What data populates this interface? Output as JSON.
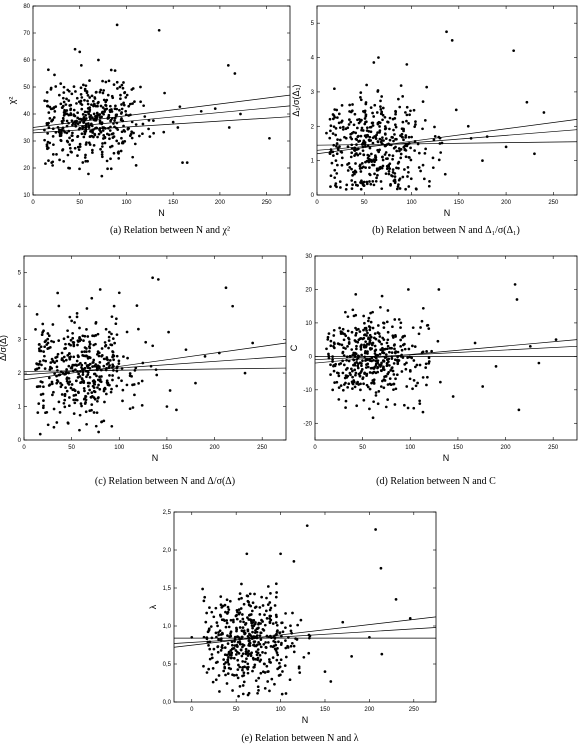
{
  "chart_data": [
    {
      "id": "a",
      "type": "scatter",
      "caption": "(a)  Relation between N and χ²",
      "xlabel": "N",
      "ylabel": "χ²",
      "xlim": [
        0,
        275
      ],
      "ylim": [
        10,
        80
      ],
      "xticks": [
        0,
        50,
        100,
        150,
        200,
        250
      ],
      "xtick_labels": [
        "0",
        "50",
        "100",
        "150",
        "200",
        "250"
      ],
      "yticks": [
        10,
        20,
        30,
        40,
        50,
        60,
        70,
        80
      ],
      "ytick_labels": [
        "10",
        "20",
        "30",
        "40",
        "50",
        "60",
        "70",
        "80"
      ],
      "cluster": {
        "n": 450,
        "x_center": 62,
        "x_spread": 28,
        "y_center": 37,
        "y_spread": 7
      },
      "points": [
        [
          90,
          73
        ],
        [
          135,
          71
        ],
        [
          50,
          63
        ],
        [
          45,
          64
        ],
        [
          70,
          60
        ],
        [
          209,
          58
        ],
        [
          216,
          55
        ],
        [
          93,
          50
        ],
        [
          115,
          50
        ],
        [
          150,
          37
        ],
        [
          155,
          35
        ],
        [
          160,
          22
        ],
        [
          165,
          22
        ],
        [
          180,
          41
        ],
        [
          195,
          42
        ],
        [
          210,
          35
        ],
        [
          222,
          40
        ],
        [
          253,
          31
        ],
        [
          30,
          32
        ],
        [
          38,
          20
        ],
        [
          20,
          22
        ],
        [
          15,
          28
        ],
        [
          17,
          35
        ]
      ],
      "fit_lines": [
        [
          [
            0,
            35
          ],
          [
            275,
            47
          ]
        ],
        [
          [
            0,
            34
          ],
          [
            275,
            43
          ]
        ],
        [
          [
            0,
            33
          ],
          [
            275,
            39
          ]
        ]
      ]
    },
    {
      "id": "b",
      "type": "scatter",
      "caption": "(b)  Relation between N and Δ₁/σ(Δ₁)",
      "xlabel": "N",
      "ylabel": "Δ₁/σ(Δ₁)",
      "xlim": [
        0,
        275
      ],
      "ylim": [
        0,
        5.5
      ],
      "xticks": [
        0,
        50,
        100,
        150,
        200,
        250
      ],
      "xtick_labels": [
        "0",
        "50",
        "100",
        "150",
        "200",
        "250"
      ],
      "yticks": [
        0,
        1,
        2,
        3,
        4,
        5
      ],
      "ytick_labels": [
        "0",
        "1",
        "2",
        "3",
        "4",
        "5"
      ],
      "cluster": {
        "n": 450,
        "x_center": 62,
        "x_spread": 28,
        "y_center": 1.4,
        "y_spread": 0.75
      },
      "points": [
        [
          137,
          4.75
        ],
        [
          143,
          4.5
        ],
        [
          208,
          4.2
        ],
        [
          65,
          4.0
        ],
        [
          95,
          3.8
        ],
        [
          160,
          2.0
        ],
        [
          175,
          1.0
        ],
        [
          200,
          1.4
        ],
        [
          222,
          2.7
        ],
        [
          230,
          1.2
        ],
        [
          240,
          2.4
        ],
        [
          180,
          1.7
        ],
        [
          10,
          1.8
        ],
        [
          20,
          1.0
        ],
        [
          130,
          1.5
        ]
      ],
      "fit_lines": [
        [
          [
            0,
            1.2
          ],
          [
            275,
            2.2
          ]
        ],
        [
          [
            0,
            1.3
          ],
          [
            275,
            1.9
          ]
        ],
        [
          [
            0,
            1.45
          ],
          [
            275,
            1.55
          ]
        ]
      ]
    },
    {
      "id": "c",
      "type": "scatter",
      "caption": "(c)  Relation between N and Δ/σ(Δ)",
      "xlabel": "N",
      "ylabel": "Δ/σ(Δ)",
      "xlim": [
        0,
        275
      ],
      "ylim": [
        0,
        5.5
      ],
      "xticks": [
        0,
        50,
        100,
        150,
        200,
        250
      ],
      "xtick_labels": [
        "0",
        "50",
        "100",
        "150",
        "200",
        "250"
      ],
      "yticks": [
        0,
        1,
        2,
        3,
        4,
        5
      ],
      "ytick_labels": [
        "0",
        "1",
        "2",
        "3",
        "4",
        "5"
      ],
      "cluster": {
        "n": 450,
        "x_center": 62,
        "x_spread": 28,
        "y_center": 2.1,
        "y_spread": 0.75
      },
      "points": [
        [
          135,
          4.85
        ],
        [
          141,
          4.8
        ],
        [
          212,
          4.55
        ],
        [
          219,
          4.0
        ],
        [
          80,
          4.5
        ],
        [
          100,
          4.4
        ],
        [
          170,
          2.7
        ],
        [
          190,
          2.5
        ],
        [
          205,
          2.6
        ],
        [
          232,
          2.0
        ],
        [
          240,
          2.9
        ],
        [
          160,
          0.9
        ],
        [
          150,
          1.0
        ],
        [
          180,
          1.7
        ],
        [
          15,
          1.6
        ]
      ],
      "fit_lines": [
        [
          [
            0,
            1.8
          ],
          [
            275,
            2.9
          ]
        ],
        [
          [
            0,
            1.95
          ],
          [
            275,
            2.5
          ]
        ],
        [
          [
            0,
            2.05
          ],
          [
            275,
            2.15
          ]
        ]
      ]
    },
    {
      "id": "d",
      "type": "scatter",
      "caption": "(d)  Relation between N and C",
      "xlabel": "N",
      "ylabel": "C",
      "xlim": [
        0,
        275
      ],
      "ylim": [
        -25,
        30
      ],
      "xticks": [
        0,
        50,
        100,
        150,
        200,
        250
      ],
      "xtick_labels": [
        "0",
        "50",
        "100",
        "150",
        "200",
        "250"
      ],
      "yticks": [
        -20,
        -10,
        0,
        10,
        20,
        30
      ],
      "ytick_labels": [
        "-20",
        "-10",
        "0",
        "10",
        "20",
        "30"
      ],
      "cluster": {
        "n": 450,
        "x_center": 62,
        "x_spread": 28,
        "y_center": 0,
        "y_spread": 6.5
      },
      "points": [
        [
          210,
          21.5
        ],
        [
          212,
          17
        ],
        [
          214,
          -16
        ],
        [
          130,
          20
        ],
        [
          98,
          20
        ],
        [
          235,
          -2
        ],
        [
          226,
          3
        ],
        [
          253,
          5
        ],
        [
          190,
          -3
        ],
        [
          168,
          4
        ],
        [
          176,
          -9
        ],
        [
          145,
          -12
        ]
      ],
      "fit_lines": [
        [
          [
            0,
            -2
          ],
          [
            275,
            5
          ]
        ],
        [
          [
            0,
            -1
          ],
          [
            275,
            3
          ]
        ],
        [
          [
            0,
            0
          ],
          [
            275,
            0
          ]
        ]
      ]
    },
    {
      "id": "e",
      "type": "scatter",
      "caption": "(e)  Relation between N and λ",
      "xlabel": "N",
      "ylabel": "λ",
      "xlim": [
        -20,
        275
      ],
      "ylim": [
        0,
        2.5
      ],
      "xticks": [
        0,
        50,
        100,
        150,
        200,
        250
      ],
      "xtick_labels": [
        "0",
        "50",
        "100",
        "150",
        "200",
        "250"
      ],
      "yticks": [
        0,
        0.5,
        1.0,
        1.5,
        2.0,
        2.5
      ],
      "ytick_labels": [
        "0,0",
        "0,5",
        "1,0",
        "1,5",
        "2,0",
        "2,5"
      ],
      "cluster": {
        "n": 450,
        "x_center": 62,
        "x_spread": 28,
        "y_center": 0.82,
        "y_spread": 0.3
      },
      "points": [
        [
          130,
          2.32
        ],
        [
          207,
          2.27
        ],
        [
          213,
          1.76
        ],
        [
          62,
          1.95
        ],
        [
          100,
          1.95
        ],
        [
          115,
          1.85
        ],
        [
          170,
          1.05
        ],
        [
          200,
          0.85
        ],
        [
          230,
          1.35
        ],
        [
          246,
          1.1
        ],
        [
          150,
          0.4
        ],
        [
          180,
          0.6
        ],
        [
          214,
          0.63
        ],
        [
          0,
          0.85
        ]
      ],
      "fit_lines": [
        [
          [
            -20,
            0.72
          ],
          [
            275,
            1.12
          ]
        ],
        [
          [
            -20,
            0.77
          ],
          [
            275,
            0.98
          ]
        ],
        [
          [
            -20,
            0.84
          ],
          [
            275,
            0.84
          ]
        ]
      ]
    }
  ]
}
